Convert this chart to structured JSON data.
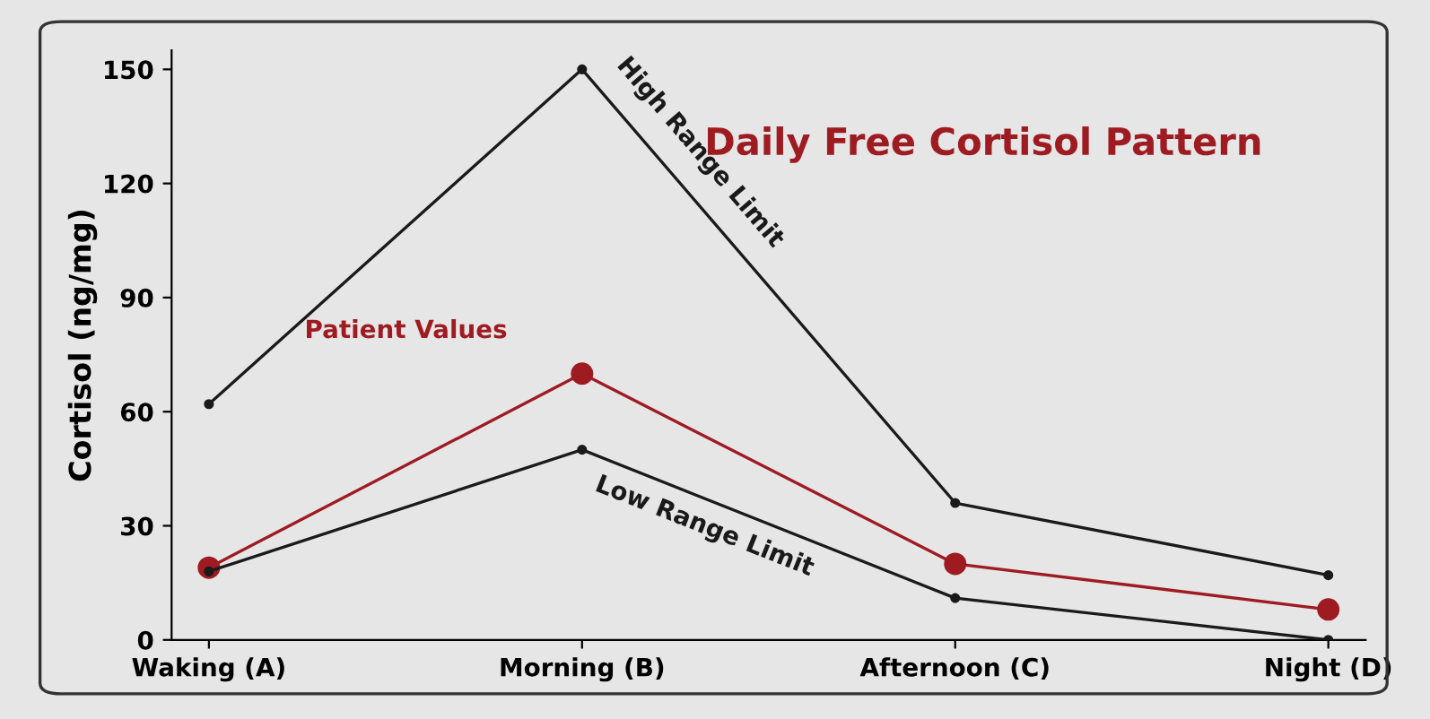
{
  "chart_data": {
    "type": "line",
    "title": "Daily Free Cortisol Pattern",
    "ylabel": "Cortisol (ng/mg)",
    "categories": [
      "Waking (A)",
      "Morning (B)",
      "Afternoon (C)",
      "Night (D)"
    ],
    "series": [
      {
        "name": "High Range Limit",
        "color": "#1a1a1a",
        "values": [
          62,
          150,
          36,
          17
        ]
      },
      {
        "name": "Patient Values",
        "color": "#9e1b22",
        "values": [
          19,
          70,
          20,
          8
        ]
      },
      {
        "name": "Low Range Limit",
        "color": "#1a1a1a",
        "values": [
          18,
          50,
          11,
          0
        ]
      }
    ],
    "ylim": [
      0,
      155
    ],
    "yticks": [
      0,
      30,
      60,
      90,
      120,
      150
    ],
    "grid": false,
    "legend": false,
    "marker": "circle",
    "line_style": "solid"
  }
}
